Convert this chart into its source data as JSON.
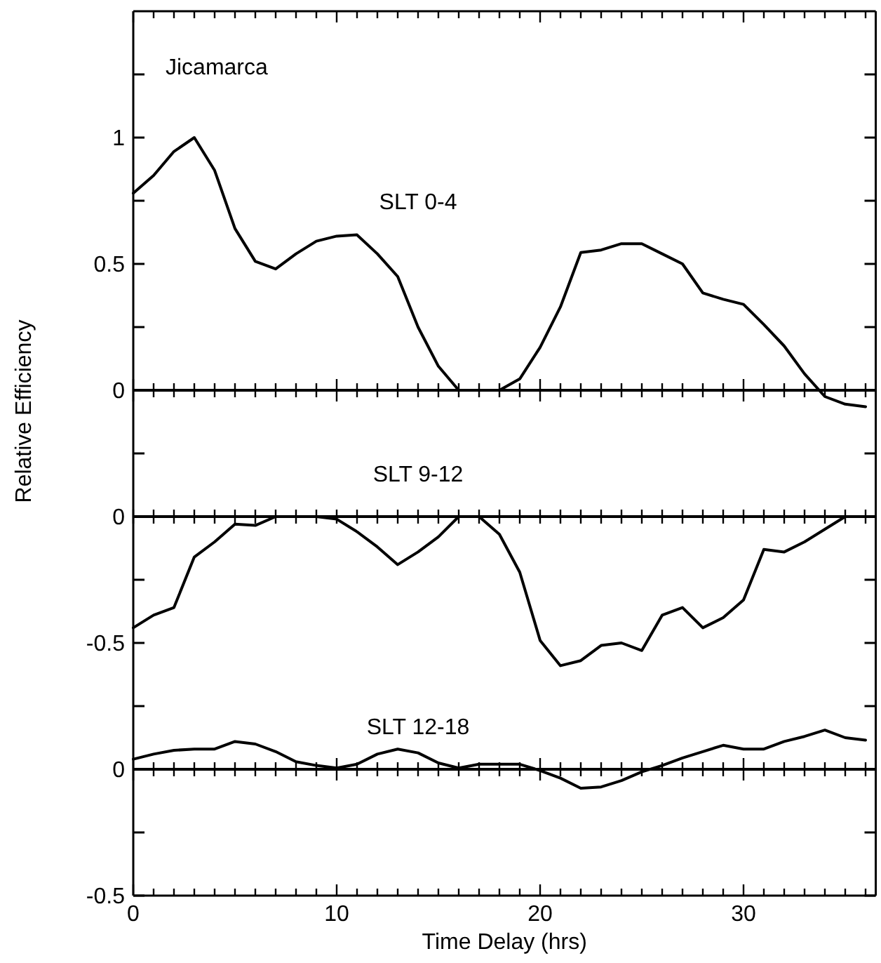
{
  "chart_data": [
    {
      "type": "line",
      "title": "SLT 0-4",
      "annotations": [
        "Jicamarca"
      ],
      "x": [
        0,
        1,
        2,
        3,
        4,
        5,
        6,
        7,
        8,
        9,
        10,
        11,
        12,
        13,
        14,
        15,
        16,
        17,
        18,
        19,
        20,
        21,
        22,
        23,
        24,
        25,
        26,
        27,
        28,
        29,
        30,
        31,
        32,
        33,
        34,
        35,
        36
      ],
      "series": [
        {
          "color": "#000000",
          "values": [
            0.78,
            0.85,
            0.945,
            1.0,
            0.87,
            0.64,
            0.51,
            0.48,
            0.54,
            0.59,
            0.61,
            0.615,
            0.54,
            0.45,
            0.25,
            0.095,
            0,
            0,
            0,
            0.045,
            0.17,
            0.33,
            0.545,
            0.555,
            0.58,
            0.58,
            0.54,
            0.5,
            0.385,
            0.36,
            0.34,
            0.26,
            0.175,
            0.065,
            -0.025,
            -0.055,
            -0.065
          ]
        }
      ],
      "xlim": [
        0,
        36.5
      ],
      "xticks": [
        0,
        {
          "value": 1,
          "label": null
        },
        {
          "value": 2,
          "label": null
        },
        {
          "value": 3,
          "label": null
        },
        {
          "value": 4,
          "label": null
        },
        {
          "value": 5,
          "label": null
        },
        {
          "value": 6,
          "label": null
        },
        {
          "value": 7,
          "label": null
        },
        {
          "value": 8,
          "label": null
        },
        {
          "value": 9,
          "label": null
        },
        10,
        {
          "value": 11,
          "label": null
        },
        {
          "value": 12,
          "label": null
        },
        {
          "value": 13,
          "label": null
        },
        {
          "value": 14,
          "label": null
        },
        {
          "value": 15,
          "label": null
        },
        {
          "value": 16,
          "label": null
        },
        {
          "value": 17,
          "label": null
        },
        {
          "value": 18,
          "label": null
        },
        {
          "value": 19,
          "label": null
        },
        20,
        {
          "value": 21,
          "label": null
        },
        {
          "value": 22,
          "label": null
        },
        {
          "value": 23,
          "label": null
        },
        {
          "value": 24,
          "label": null
        },
        {
          "value": 25,
          "label": null
        },
        {
          "value": 26,
          "label": null
        },
        {
          "value": 27,
          "label": null
        },
        {
          "value": 28,
          "label": null
        },
        {
          "value": 29,
          "label": null
        },
        30,
        {
          "value": 31,
          "label": null
        },
        {
          "value": 32,
          "label": null
        },
        {
          "value": 33,
          "label": null
        },
        {
          "value": 34,
          "label": null
        },
        {
          "value": 35,
          "label": null
        },
        {
          "value": 36,
          "label": null
        }
      ],
      "ylim": [
        -0.25,
        1.5
      ],
      "yticks": [
        0,
        {
          "value": 0.25,
          "label": null
        },
        0.5,
        {
          "value": 0.75,
          "label": null
        },
        1,
        {
          "value": 1.25,
          "label": null
        }
      ],
      "ref_lines": [
        {
          "axis": "y",
          "value": 0,
          "color": "#000000"
        }
      ],
      "tick_labels": "y",
      "grid": false,
      "marker": "none",
      "line_style": "solid"
    },
    {
      "type": "line",
      "title": "SLT 9-12",
      "ylabel": "Relative Efficiency",
      "x": [
        0,
        1,
        2,
        3,
        4,
        5,
        6,
        7,
        8,
        9,
        10,
        11,
        12,
        13,
        14,
        15,
        16,
        17,
        18,
        19,
        20,
        21,
        22,
        23,
        24,
        25,
        26,
        27,
        28,
        29,
        30,
        31,
        32,
        33,
        34,
        35,
        36
      ],
      "series": [
        {
          "color": "#000000",
          "values": [
            -0.44,
            -0.39,
            -0.36,
            -0.16,
            -0.1,
            -0.03,
            -0.035,
            0,
            0,
            0,
            -0.01,
            -0.06,
            -0.12,
            -0.19,
            -0.14,
            -0.08,
            0,
            0,
            -0.07,
            -0.22,
            -0.49,
            -0.59,
            -0.57,
            -0.51,
            -0.5,
            -0.53,
            -0.39,
            -0.36,
            -0.44,
            -0.4,
            -0.33,
            -0.13,
            -0.14,
            -0.1,
            -0.05,
            0,
            0
          ]
        }
      ],
      "xlim": [
        0,
        36.5
      ],
      "xticks": [
        {
          "value": 0,
          "label": null
        },
        {
          "value": 1,
          "label": null
        },
        {
          "value": 2,
          "label": null
        },
        {
          "value": 3,
          "label": null
        },
        {
          "value": 4,
          "label": null
        },
        {
          "value": 5,
          "label": null
        },
        {
          "value": 6,
          "label": null
        },
        {
          "value": 7,
          "label": null
        },
        {
          "value": 8,
          "label": null
        },
        {
          "value": 9,
          "label": null
        },
        {
          "value": 10,
          "label": null
        },
        {
          "value": 11,
          "label": null
        },
        {
          "value": 12,
          "label": null
        },
        {
          "value": 13,
          "label": null
        },
        {
          "value": 14,
          "label": null
        },
        {
          "value": 15,
          "label": null
        },
        {
          "value": 16,
          "label": null
        },
        {
          "value": 17,
          "label": null
        },
        {
          "value": 18,
          "label": null
        },
        {
          "value": 19,
          "label": null
        },
        {
          "value": 20,
          "label": null
        },
        {
          "value": 21,
          "label": null
        },
        {
          "value": 22,
          "label": null
        },
        {
          "value": 23,
          "label": null
        },
        {
          "value": 24,
          "label": null
        },
        {
          "value": 25,
          "label": null
        },
        {
          "value": 26,
          "label": null
        },
        {
          "value": 27,
          "label": null
        },
        {
          "value": 28,
          "label": null
        },
        {
          "value": 29,
          "label": null
        },
        {
          "value": 30,
          "label": null
        },
        {
          "value": 31,
          "label": null
        },
        {
          "value": 32,
          "label": null
        },
        {
          "value": 33,
          "label": null
        },
        {
          "value": 34,
          "label": null
        },
        {
          "value": 35,
          "label": null
        },
        {
          "value": 36,
          "label": null
        }
      ],
      "ylim": [
        -0.75,
        0.25
      ],
      "yticks": [
        {
          "value": 0.25,
          "label": null
        },
        0,
        {
          "value": -0.25,
          "label": null
        },
        -0.5
      ],
      "ref_lines": [
        {
          "axis": "y",
          "value": 0,
          "color": "#000000"
        }
      ],
      "tick_labels": "y",
      "grid": false,
      "marker": "none",
      "line_style": "solid"
    },
    {
      "type": "line",
      "title": "SLT 12-18",
      "xlabel": "Time Delay (hrs)",
      "x": [
        0,
        1,
        2,
        3,
        4,
        5,
        6,
        7,
        8,
        9,
        10,
        11,
        12,
        13,
        14,
        15,
        16,
        17,
        18,
        19,
        20,
        21,
        22,
        23,
        24,
        25,
        26,
        27,
        28,
        29,
        30,
        31,
        32,
        33,
        34,
        35,
        36
      ],
      "series": [
        {
          "color": "#000000",
          "values": [
            0.04,
            0.06,
            0.075,
            0.08,
            0.08,
            0.11,
            0.1,
            0.07,
            0.03,
            0.015,
            0.005,
            0.02,
            0.06,
            0.08,
            0.065,
            0.025,
            0.005,
            0.02,
            0.02,
            0.02,
            -0.005,
            -0.035,
            -0.075,
            -0.07,
            -0.045,
            -0.01,
            0.015,
            0.045,
            0.07,
            0.095,
            0.08,
            0.08,
            0.11,
            0.13,
            0.155,
            0.125,
            0.115
          ]
        }
      ],
      "xlim": [
        0,
        36.5
      ],
      "xticks": [
        0,
        {
          "value": 1,
          "label": null
        },
        {
          "value": 2,
          "label": null
        },
        {
          "value": 3,
          "label": null
        },
        {
          "value": 4,
          "label": null
        },
        {
          "value": 5,
          "label": null
        },
        {
          "value": 6,
          "label": null
        },
        {
          "value": 7,
          "label": null
        },
        {
          "value": 8,
          "label": null
        },
        {
          "value": 9,
          "label": null
        },
        10,
        {
          "value": 11,
          "label": null
        },
        {
          "value": 12,
          "label": null
        },
        {
          "value": 13,
          "label": null
        },
        {
          "value": 14,
          "label": null
        },
        {
          "value": 15,
          "label": null
        },
        {
          "value": 16,
          "label": null
        },
        {
          "value": 17,
          "label": null
        },
        {
          "value": 18,
          "label": null
        },
        {
          "value": 19,
          "label": null
        },
        20,
        {
          "value": 21,
          "label": null
        },
        {
          "value": 22,
          "label": null
        },
        {
          "value": 23,
          "label": null
        },
        {
          "value": 24,
          "label": null
        },
        {
          "value": 25,
          "label": null
        },
        {
          "value": 26,
          "label": null
        },
        {
          "value": 27,
          "label": null
        },
        {
          "value": 28,
          "label": null
        },
        {
          "value": 29,
          "label": null
        },
        30,
        {
          "value": 31,
          "label": null
        },
        {
          "value": 32,
          "label": null
        },
        {
          "value": 33,
          "label": null
        },
        {
          "value": 34,
          "label": null
        },
        {
          "value": 35,
          "label": null
        },
        {
          "value": 36,
          "label": null
        }
      ],
      "ylim": [
        -0.5,
        0.25
      ],
      "yticks": [
        {
          "value": 0.25,
          "label": null
        },
        0,
        {
          "value": -0.25,
          "label": null
        },
        -0.5
      ],
      "ref_lines": [
        {
          "axis": "y",
          "value": 0,
          "color": "#000000"
        }
      ],
      "grid": false,
      "marker": "none",
      "line_style": "solid"
    }
  ]
}
